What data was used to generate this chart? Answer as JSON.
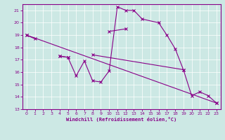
{
  "xlabel": "Windchill (Refroidissement éolien,°C)",
  "bg_color": "#cce8e4",
  "line_color": "#880088",
  "grid_color": "#ffffff",
  "xlim": [
    -0.5,
    23.5
  ],
  "ylim": [
    13,
    21.5
  ],
  "xticks": [
    0,
    1,
    2,
    3,
    4,
    5,
    6,
    7,
    8,
    9,
    10,
    11,
    12,
    13,
    14,
    15,
    16,
    17,
    18,
    19,
    20,
    21,
    22,
    23
  ],
  "yticks": [
    13,
    14,
    15,
    16,
    17,
    18,
    19,
    20,
    21
  ],
  "series": [
    {
      "comment": "upper scattered line: 0->19, 1->18.7, 4->17.3, 5->17.2, 10->19.3, 12->19.5",
      "segments": [
        {
          "x": [
            0,
            1
          ],
          "y": [
            19.0,
            18.7
          ]
        },
        {
          "x": [
            4,
            5
          ],
          "y": [
            17.3,
            17.2
          ]
        },
        {
          "x": [
            10,
            12
          ],
          "y": [
            19.3,
            19.5
          ]
        }
      ]
    },
    {
      "comment": "zigzag line going up: 4->17.3, 5->17.2, 6->15.7, 7->16.9, 8->15.3, 9->15.2, 10->16.1, 11->21.3, 12->21.0, 13->21.0, 14->20.3, 16->20.0, 17->19.0, 18->17.9, 19->16.2",
      "segments": [
        {
          "x": [
            4,
            5,
            6,
            7,
            8,
            9,
            10,
            11,
            12,
            13,
            14,
            16,
            17,
            18,
            19
          ],
          "y": [
            17.3,
            17.2,
            15.7,
            16.9,
            15.3,
            15.2,
            16.1,
            21.3,
            21.0,
            21.0,
            20.3,
            20.0,
            19.0,
            17.9,
            16.2
          ]
        }
      ]
    },
    {
      "comment": "diagonal line: 0->19 to 23->13.5",
      "segments": [
        {
          "x": [
            0,
            23
          ],
          "y": [
            19.0,
            13.5
          ]
        }
      ]
    },
    {
      "comment": "lower right line: 8->17.4, 19->16.2, 20->14.1, 21->14.4, 22->14.1, 23->13.5",
      "segments": [
        {
          "x": [
            8,
            19,
            20,
            21,
            22,
            23
          ],
          "y": [
            17.4,
            16.2,
            14.1,
            14.4,
            14.1,
            13.5
          ]
        }
      ]
    }
  ]
}
